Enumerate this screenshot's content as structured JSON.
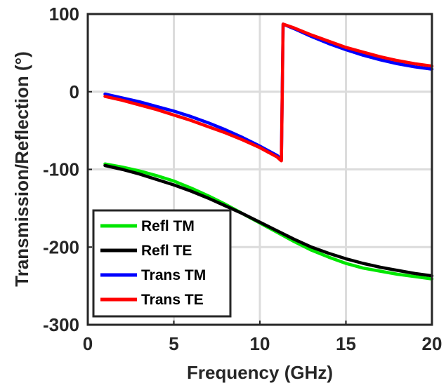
{
  "chart_data": {
    "type": "line",
    "xlabel": "Frequency (GHz)",
    "ylabel": "Transmission/Reflection (°)",
    "xlim": [
      0,
      20
    ],
    "ylim": [
      -300,
      100
    ],
    "xticks": [
      0,
      5,
      10,
      15,
      20
    ],
    "yticks": [
      -300,
      -200,
      -100,
      0,
      100
    ],
    "grid": true,
    "legend_position": "bottom-left",
    "series": [
      {
        "name": "Refl TM",
        "color": "#00e600",
        "x": [
          1,
          2,
          3,
          4,
          5,
          6,
          7,
          8,
          9,
          10,
          11,
          12,
          13,
          14,
          15,
          16,
          17,
          18,
          19,
          20
        ],
        "y": [
          -93,
          -97,
          -102,
          -108,
          -115,
          -124,
          -134,
          -145,
          -157,
          -169,
          -181,
          -193,
          -204,
          -213,
          -221,
          -227,
          -231,
          -235,
          -238,
          -241
        ]
      },
      {
        "name": "Refl TE",
        "color": "#000000",
        "x": [
          1,
          2,
          3,
          4,
          5,
          6,
          7,
          8,
          9,
          10,
          11,
          12,
          13,
          14,
          15,
          16,
          17,
          18,
          19,
          20
        ],
        "y": [
          -95,
          -100,
          -106,
          -113,
          -120,
          -128,
          -137,
          -147,
          -157,
          -168,
          -179,
          -190,
          -200,
          -208,
          -215,
          -221,
          -226,
          -230,
          -234,
          -237
        ]
      },
      {
        "name": "Trans TM",
        "color": "#0000ff",
        "x": [
          1,
          2,
          3,
          4,
          5,
          6,
          7,
          8,
          9,
          10,
          11,
          11.25,
          11.35,
          12,
          13,
          14,
          15,
          16,
          17,
          18,
          19,
          20
        ],
        "y": [
          -3,
          -8,
          -13,
          -19,
          -25,
          -32,
          -40,
          -49,
          -59,
          -70,
          -82,
          -87,
          87,
          81,
          71,
          62,
          54,
          47,
          41,
          36,
          32,
          29
        ]
      },
      {
        "name": "Trans TE",
        "color": "#ff0000",
        "x": [
          1,
          2,
          3,
          4,
          5,
          6,
          7,
          8,
          9,
          10,
          11,
          11.25,
          11.35,
          12,
          13,
          14,
          15,
          16,
          17,
          18,
          19,
          20
        ],
        "y": [
          -6,
          -11,
          -17,
          -23,
          -30,
          -37,
          -45,
          -53,
          -62,
          -72,
          -84,
          -89,
          87,
          82,
          73,
          65,
          57,
          51,
          45,
          40,
          36,
          33
        ]
      }
    ]
  }
}
